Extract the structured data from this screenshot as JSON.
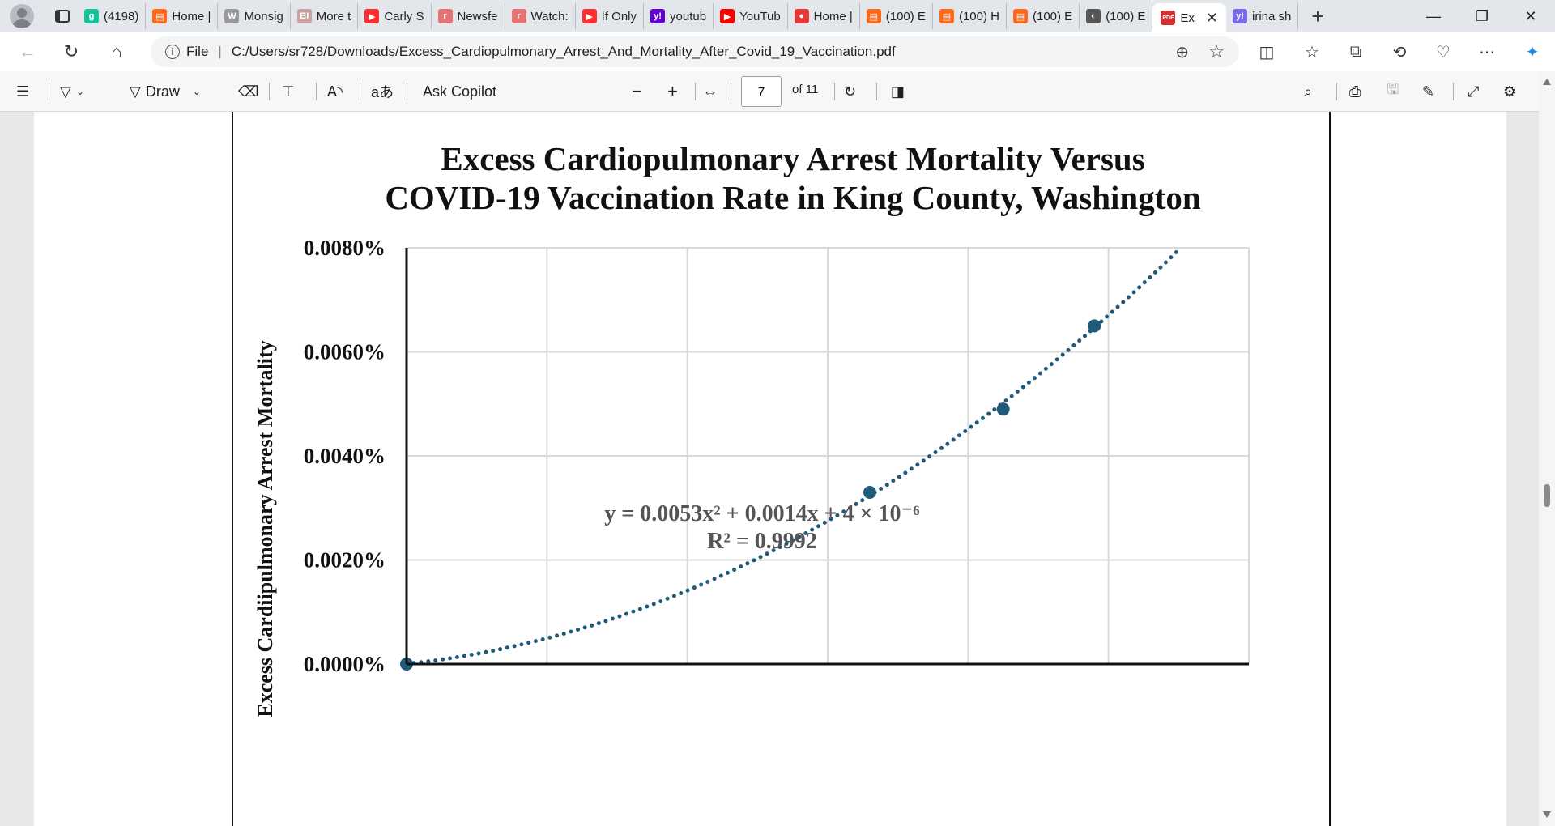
{
  "tabs": [
    {
      "label": "(4198)",
      "icon": "grammarly-icon",
      "color": "#15c39a",
      "glyph": "g"
    },
    {
      "label": "Home |",
      "icon": "substack-icon",
      "color": "#ff6719",
      "glyph": "▤"
    },
    {
      "label": "Monsig",
      "icon": "wordpress-icon",
      "color": "#999999",
      "glyph": "W"
    },
    {
      "label": "More t",
      "icon": "bi-icon",
      "color": "#c9a3a3",
      "glyph": "BI"
    },
    {
      "label": "Carly S",
      "icon": "youtube-icon",
      "color": "#ff2d2d",
      "glyph": "▶"
    },
    {
      "label": "Newsfe",
      "icon": "r-icon",
      "color": "#e57373",
      "glyph": "r"
    },
    {
      "label": "Watch:",
      "icon": "r-icon",
      "color": "#e57373",
      "glyph": "r"
    },
    {
      "label": "If Only",
      "icon": "youtube-icon",
      "color": "#ff2d2d",
      "glyph": "▶"
    },
    {
      "label": "youtub",
      "icon": "yahoo-icon",
      "color": "#6001d2",
      "glyph": "y!"
    },
    {
      "label": "YouTub",
      "icon": "youtube-icon",
      "color": "#ff0000",
      "glyph": "▶"
    },
    {
      "label": "Home |",
      "icon": "podcast-icon",
      "color": "#e53935",
      "glyph": "●"
    },
    {
      "label": "(100) E",
      "icon": "substack-icon",
      "color": "#ff6719",
      "glyph": "▤"
    },
    {
      "label": "(100) H",
      "icon": "substack-icon",
      "color": "#ff6719",
      "glyph": "▤"
    },
    {
      "label": "(100) E",
      "icon": "substack-icon",
      "color": "#ff6719",
      "glyph": "▤"
    },
    {
      "label": "(100) E",
      "icon": "image-icon",
      "color": "#555555",
      "glyph": "◐"
    },
    {
      "label": "Ex",
      "icon": "pdf-icon",
      "color": "#d32f2f",
      "glyph": "PDF",
      "active": true
    },
    {
      "label": "irina sh",
      "icon": "yahoo-icon",
      "color": "#7b68ee",
      "glyph": "y!"
    }
  ],
  "address": {
    "scheme": "File",
    "url": "C:/Users/sr728/Downloads/Excess_Cardiopulmonary_Arrest_And_Mortality_After_Covid_19_Vaccination.pdf"
  },
  "pdf_toolbar": {
    "draw_label": "Draw",
    "copilot_label": "Ask Copilot",
    "current_page": "7",
    "page_of": "of 11"
  },
  "chart_data": {
    "type": "scatter",
    "title_line1": "Excess Cardiopulmonary Arrest Mortality Versus",
    "title_line2": "COVID-19 Vaccination Rate in King County, Washington",
    "ylabel": "Excess Cardiipulmonary Arrest Mortality",
    "y_ticks": [
      "0.0000%",
      "0.0020%",
      "0.0040%",
      "0.0060%",
      "0.0080%"
    ],
    "ylim": [
      0,
      0.008
    ],
    "xlim": [
      0,
      1.2
    ],
    "points": [
      {
        "x": 0.0,
        "y": 0.0
      },
      {
        "x": 0.66,
        "y": 0.0033
      },
      {
        "x": 0.85,
        "y": 0.0049
      },
      {
        "x": 0.98,
        "y": 0.0065
      }
    ],
    "trendline": {
      "a": 0.0053,
      "b": 0.0014,
      "c": 4e-06,
      "x_end": 1.1
    },
    "equation": "y = 0.0053x² + 0.0014x + 4 × 10⁻⁶",
    "r_squared": "R² = 0.9992",
    "series_color": "#1f5a7a"
  }
}
